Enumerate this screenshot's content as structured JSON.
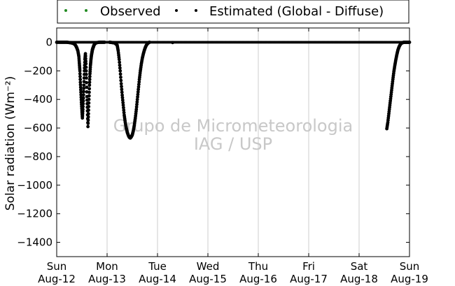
{
  "chart_data": {
    "type": "scatter",
    "title": "",
    "ylabel": "Solar radiation (Wm⁻²)",
    "xlabel": "",
    "ylim": [
      -1500,
      100
    ],
    "xlim": [
      0,
      7
    ],
    "yticks": [
      0,
      -200,
      -400,
      -600,
      -800,
      -1000,
      -1200,
      -1400
    ],
    "xticks": [
      {
        "x": 0,
        "day": "Sun",
        "date": "Aug-12"
      },
      {
        "x": 1,
        "day": "Mon",
        "date": "Aug-13"
      },
      {
        "x": 2,
        "day": "Tue",
        "date": "Aug-14"
      },
      {
        "x": 3,
        "day": "Wed",
        "date": "Aug-15"
      },
      {
        "x": 4,
        "day": "Thu",
        "date": "Aug-16"
      },
      {
        "x": 5,
        "day": "Fri",
        "date": "Aug-17"
      },
      {
        "x": 6,
        "day": "Sat",
        "date": "Aug-18"
      },
      {
        "x": 7,
        "day": "Sun",
        "date": "Aug-19"
      }
    ],
    "grid": "vertical",
    "legend_position": "top",
    "watermark": [
      "Grupo de Micrometeorologia",
      "IAG / USP"
    ],
    "series": [
      {
        "name": "Observed",
        "color": "#228b22",
        "points": []
      },
      {
        "name": "Estimated (Global - Diffuse)",
        "color": "#000000",
        "segments": [
          {
            "x": [
              0.0,
              0.05,
              0.1,
              0.15,
              0.2,
              0.25,
              0.3,
              0.33,
              0.36,
              0.38,
              0.4,
              0.42,
              0.44,
              0.45,
              0.46,
              0.47,
              0.48,
              0.49,
              0.5,
              0.51,
              0.52,
              0.53,
              0.54,
              0.55,
              0.56,
              0.57,
              0.58,
              0.59,
              0.6,
              0.61,
              0.62,
              0.63,
              0.64,
              0.65,
              0.66,
              0.67,
              0.68,
              0.69,
              0.7,
              0.71,
              0.72,
              0.73,
              0.74,
              0.76,
              0.78,
              0.8,
              0.85,
              0.9,
              0.95
            ],
            "y": [
              0,
              0,
              0,
              0,
              0,
              -2,
              -5,
              -8,
              -15,
              -25,
              -40,
              -60,
              -100,
              -150,
              -200,
              -280,
              -350,
              -420,
              -480,
              -530,
              -470,
              -390,
              -300,
              -200,
              -120,
              -80,
              -150,
              -250,
              -380,
              -480,
              -590,
              -500,
              -400,
              -300,
              -220,
              -160,
              -120,
              -90,
              -70,
              -50,
              -40,
              -30,
              -20,
              -10,
              -5,
              -2,
              0,
              0,
              0
            ]
          },
          {
            "x": [
              1.05,
              1.1,
              1.15,
              1.2,
              1.22,
              1.24,
              1.26,
              1.28,
              1.3,
              1.32,
              1.34,
              1.36,
              1.38,
              1.4,
              1.42,
              1.44,
              1.46,
              1.48,
              1.5,
              1.52,
              1.54,
              1.56,
              1.58,
              1.6,
              1.62,
              1.64,
              1.66,
              1.68,
              1.7,
              1.72,
              1.74,
              1.76,
              1.78,
              1.8,
              1.82,
              1.84
            ],
            "y": [
              0,
              -2,
              -5,
              -20,
              -60,
              -120,
              -200,
              -290,
              -370,
              -440,
              -510,
              -560,
              -600,
              -630,
              -650,
              -665,
              -670,
              -662,
              -648,
              -620,
              -580,
              -530,
              -470,
              -400,
              -330,
              -260,
              -200,
              -150,
              -110,
              -80,
              -55,
              -35,
              -20,
              -10,
              -4,
              0
            ]
          },
          {
            "x": [
              2.3
            ],
            "y": [
              -2
            ]
          },
          {
            "x": [
              6.55,
              6.57,
              6.59,
              6.61,
              6.63,
              6.65,
              6.67,
              6.69,
              6.71,
              6.73,
              6.75,
              6.77,
              6.79,
              6.81,
              6.83,
              6.85,
              6.87,
              6.89,
              6.92,
              6.95,
              6.98,
              7.0
            ],
            "y": [
              -605,
              -560,
              -500,
              -440,
              -380,
              -320,
              -260,
              -205,
              -160,
              -120,
              -85,
              -55,
              -35,
              -20,
              -10,
              -5,
              -2,
              0,
              0,
              0,
              0,
              0
            ]
          }
        ]
      }
    ]
  }
}
